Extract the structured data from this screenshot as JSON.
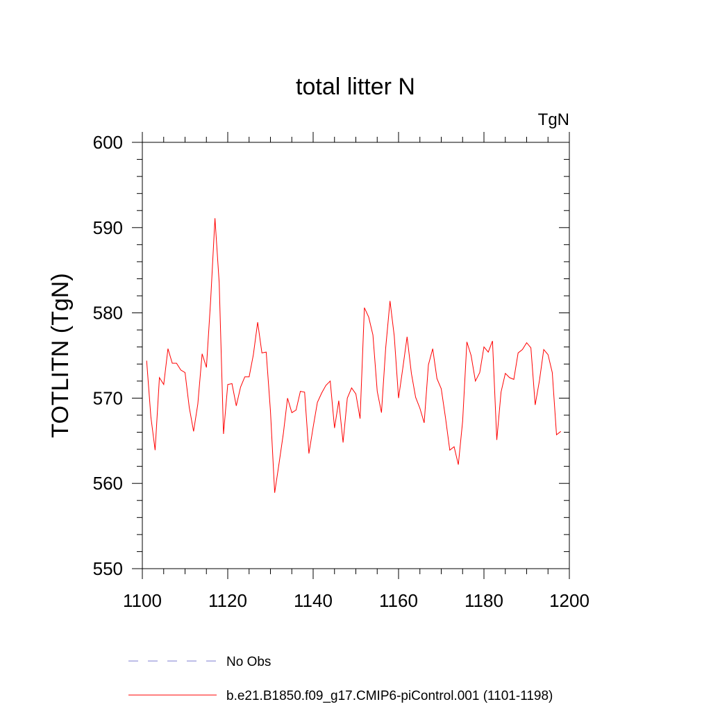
{
  "chart_data": {
    "type": "line",
    "title": "total litter N",
    "units_label": "TgN",
    "xlabel": "",
    "ylabel": "TOTLITN  (TgN)",
    "xlim": [
      1100,
      1200
    ],
    "ylim": [
      550,
      600
    ],
    "x_ticks": [
      1100,
      1120,
      1140,
      1160,
      1180,
      1200
    ],
    "y_ticks": [
      550,
      560,
      570,
      580,
      590,
      600
    ],
    "grid": false,
    "legend_position": "bottom-left",
    "series": [
      {
        "name": "No Obs",
        "color": "#7b7bd1",
        "style": "dashed",
        "x": [],
        "y": []
      },
      {
        "name": "b.e21.B1850.f09_g17.CMIP6-piControl.001 (1101-1198)",
        "color": "#ff0000",
        "style": "solid",
        "x": [
          1101,
          1102,
          1103,
          1104,
          1105,
          1106,
          1107,
          1108,
          1109,
          1110,
          1111,
          1112,
          1113,
          1114,
          1115,
          1116,
          1117,
          1118,
          1119,
          1120,
          1121,
          1122,
          1123,
          1124,
          1125,
          1126,
          1127,
          1128,
          1129,
          1130,
          1131,
          1132,
          1133,
          1134,
          1135,
          1136,
          1137,
          1138,
          1139,
          1140,
          1141,
          1142,
          1143,
          1144,
          1145,
          1146,
          1147,
          1148,
          1149,
          1150,
          1151,
          1152,
          1153,
          1154,
          1155,
          1156,
          1157,
          1158,
          1159,
          1160,
          1161,
          1162,
          1163,
          1164,
          1165,
          1166,
          1167,
          1168,
          1169,
          1170,
          1171,
          1172,
          1173,
          1174,
          1175,
          1176,
          1177,
          1178,
          1179,
          1180,
          1181,
          1182,
          1183,
          1184,
          1185,
          1186,
          1187,
          1188,
          1189,
          1190,
          1191,
          1192,
          1193,
          1194,
          1195,
          1196,
          1197,
          1198
        ],
        "y": [
          574.4,
          567.8,
          563.9,
          572.4,
          571.6,
          575.8,
          574.1,
          574.1,
          573.3,
          573.0,
          568.9,
          566.1,
          569.3,
          575.2,
          573.6,
          581.5,
          591.1,
          583.5,
          565.8,
          571.6,
          571.7,
          569.1,
          571.3,
          572.5,
          572.5,
          575.1,
          578.9,
          575.3,
          575.4,
          568.5,
          558.9,
          562.3,
          565.8,
          570.0,
          568.3,
          568.6,
          570.8,
          570.7,
          563.5,
          566.6,
          569.5,
          570.6,
          571.5,
          572.0,
          566.5,
          569.7,
          564.8,
          570.0,
          571.2,
          570.5,
          567.6,
          580.6,
          579.5,
          577.4,
          570.8,
          568.3,
          575.9,
          581.4,
          577.3,
          570.0,
          573.5,
          577.2,
          572.9,
          570.1,
          568.8,
          567.1,
          573.9,
          575.8,
          572.3,
          571.1,
          567.7,
          563.9,
          564.3,
          562.2,
          567.3,
          576.6,
          575.0,
          572.0,
          573.0,
          576.0,
          575.4,
          576.7,
          565.1,
          570.7,
          572.9,
          572.4,
          572.2,
          575.3,
          575.7,
          576.5,
          575.9,
          569.2,
          572.1,
          575.7,
          575.1,
          573.0,
          565.7,
          566.1
        ]
      }
    ]
  }
}
